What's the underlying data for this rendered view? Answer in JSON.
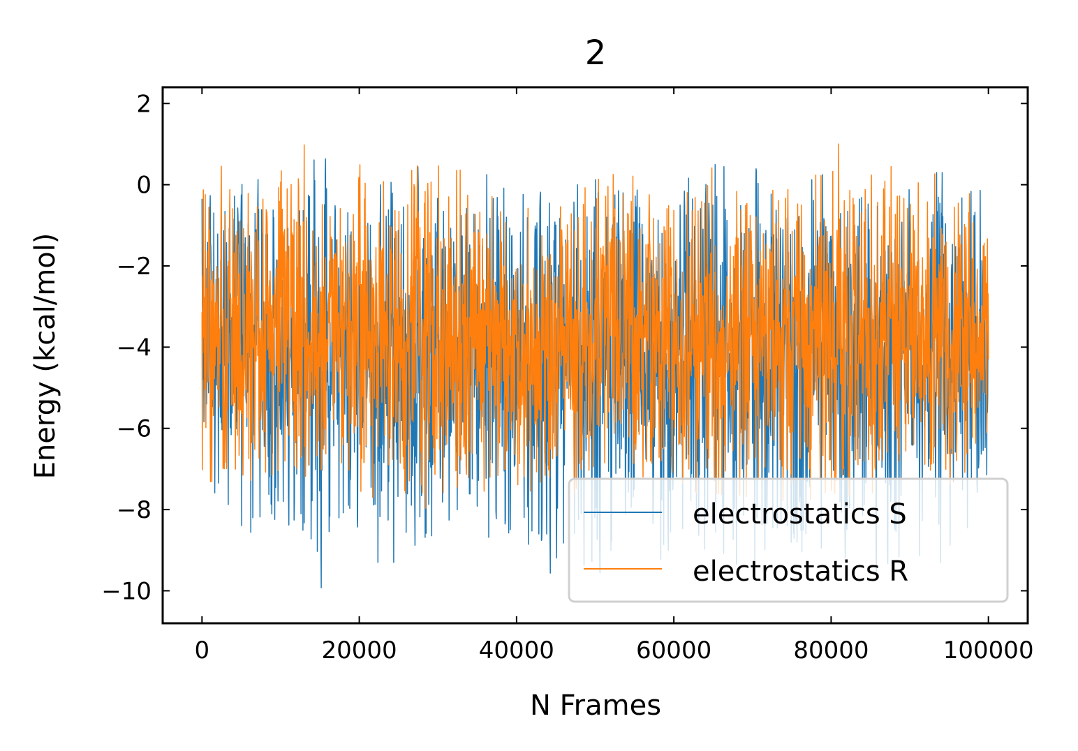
{
  "chart_data": {
    "type": "line",
    "title": "2",
    "xlabel": "N Frames",
    "ylabel": "Energy (kcal/mol)",
    "xlim": [
      -5000,
      105000
    ],
    "ylim": [
      -10.8,
      2.4
    ],
    "xticks": [
      0,
      20000,
      40000,
      60000,
      80000,
      100000
    ],
    "yticks": [
      2,
      0,
      -2,
      -4,
      -6,
      -8,
      -10
    ],
    "xtick_labels": [
      "0",
      "20000",
      "40000",
      "60000",
      "80000",
      "100000"
    ],
    "ytick_labels": [
      "2",
      "0",
      "−2",
      "−4",
      "−6",
      "−8",
      "−10"
    ],
    "legend_position": "lower-right",
    "grid": false,
    "series": [
      {
        "name": "electrostatics S",
        "color": "#1f77b4",
        "x": [
          0,
          5000,
          10000,
          15000,
          20000,
          25000,
          30000,
          35000,
          40000,
          45000,
          50000,
          52500,
          55000,
          60000,
          65000,
          70000,
          75000,
          80000,
          85000,
          90000,
          95000,
          100000
        ],
        "mean": [
          -3.9,
          -4.0,
          -4.1,
          -4.0,
          -4.1,
          -4.0,
          -4.1,
          -4.2,
          -4.3,
          -4.2,
          -4.1,
          -3.6,
          -4.0,
          -4.1,
          -4.0,
          -4.1,
          -4.0,
          -4.0,
          -4.1,
          -4.1,
          -4.0,
          -4.0
        ],
        "max": [
          0.3,
          0.0,
          0.3,
          1.1,
          0.5,
          1.0,
          0.5,
          0.2,
          0.4,
          -0.2,
          0.8,
          1.5,
          0.3,
          0.2,
          0.5,
          0.4,
          0.3,
          0.5,
          0.4,
          0.3,
          0.3,
          0.0
        ],
        "min": [
          -8.3,
          -10.1,
          -9.0,
          -10.2,
          -9.3,
          -9.3,
          -9.6,
          -9.3,
          -9.8,
          -9.9,
          -10.0,
          -9.5,
          -9.4,
          -9.6,
          -9.8,
          -10.0,
          -9.8,
          -9.9,
          -9.7,
          -9.8,
          -10.2,
          -7.3
        ]
      },
      {
        "name": "electrostatics R",
        "color": "#ff7f0e",
        "x": [
          0,
          5000,
          10000,
          15000,
          20000,
          25000,
          30000,
          35000,
          40000,
          45000,
          50000,
          52500,
          55000,
          60000,
          65000,
          70000,
          75000,
          80000,
          85000,
          90000,
          95000,
          100000
        ],
        "mean": [
          -3.7,
          -3.8,
          -3.8,
          -3.9,
          -3.8,
          -3.9,
          -3.8,
          -3.9,
          -3.9,
          -3.8,
          -3.8,
          -3.5,
          -3.8,
          -3.9,
          -3.8,
          -3.8,
          -3.9,
          -3.8,
          -3.9,
          -3.8,
          -3.9,
          -3.8
        ],
        "max": [
          0.8,
          0.2,
          1.1,
          0.9,
          1.0,
          0.6,
          1.7,
          0.2,
          0.3,
          0.4,
          0.6,
          1.6,
          0.2,
          0.3,
          1.4,
          0.6,
          1.0,
          1.6,
          0.5,
          0.4,
          0.5,
          0.2
        ],
        "min": [
          -8.2,
          -7.9,
          -8.0,
          -7.8,
          -7.6,
          -7.9,
          -8.0,
          -7.9,
          -8.2,
          -7.9,
          -7.7,
          -7.6,
          -7.6,
          -7.7,
          -7.6,
          -7.7,
          -7.8,
          -7.7,
          -7.6,
          -7.6,
          -7.8,
          -6.6
        ]
      }
    ]
  }
}
